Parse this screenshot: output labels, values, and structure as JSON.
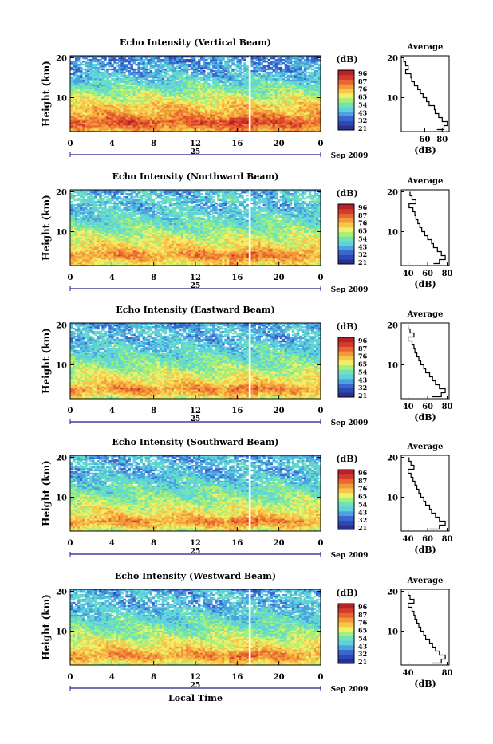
{
  "figure": {
    "xlabel": "Local Time",
    "date_label": "Sep 2009",
    "day_label": "25",
    "ylabel": "Height (km)"
  },
  "colorbar": {
    "unit": "(dB)",
    "ticks": [
      "96",
      "87",
      "76",
      "65",
      "54",
      "43",
      "32",
      "21"
    ],
    "colors": [
      "#2b2f8f",
      "#2c4ab5",
      "#3a66d0",
      "#4aa3dd",
      "#5ed0de",
      "#6fe3b5",
      "#a8ef7a",
      "#f0ef6a",
      "#f7c74a",
      "#f29a3b",
      "#ea6631",
      "#d43b2b",
      "#b52228"
    ]
  },
  "chart_data": [
    {
      "type": "heatmap",
      "title": "Echo Intensity (Vertical Beam)",
      "xlabel": "Local Time",
      "ylabel": "Height (km)",
      "x_ticks": [
        "0",
        "4",
        "8",
        "12",
        "16",
        "20",
        "0"
      ],
      "y_ticks": [
        "20",
        "10"
      ],
      "xlim": [
        0,
        24
      ],
      "ylim": [
        1.5,
        20.5
      ],
      "z_unit": "dB",
      "z_range": [
        21,
        96
      ],
      "colorbar_ticks": [
        96,
        87,
        76,
        65,
        54,
        43,
        32,
        21
      ],
      "profile": {
        "title": "Average",
        "xlabel": "(dB)",
        "x_ticks": [
          "60",
          "80"
        ],
        "y_ticks": [
          "20",
          "10"
        ],
        "xlim": [
          33,
          88
        ],
        "ylim": [
          1.5,
          20.5
        ],
        "height": [
          2,
          3,
          4,
          5,
          6,
          7,
          8,
          9,
          10,
          11,
          12,
          13,
          14,
          15,
          16,
          17,
          18,
          19,
          20
        ],
        "mean_db": [
          74,
          82,
          86,
          80,
          76,
          72,
          71,
          65,
          62,
          58,
          55,
          52,
          48,
          45,
          44,
          38,
          41,
          38,
          36
        ]
      }
    },
    {
      "type": "heatmap",
      "title": "Echo Intensity (Northward Beam)",
      "xlabel": "Local Time",
      "ylabel": "Height (km)",
      "x_ticks": [
        "0",
        "4",
        "8",
        "12",
        "16",
        "20",
        "0"
      ],
      "y_ticks": [
        "20",
        "10"
      ],
      "xlim": [
        0,
        24
      ],
      "ylim": [
        1.5,
        20.5
      ],
      "z_unit": "dB",
      "z_range": [
        21,
        96
      ],
      "colorbar_ticks": [
        96,
        87,
        76,
        65,
        54,
        43,
        32,
        21
      ],
      "profile": {
        "title": "Average",
        "xlabel": "(dB)",
        "x_ticks": [
          "40",
          "60",
          "80"
        ],
        "y_ticks": [
          "20",
          "10"
        ],
        "xlim": [
          33,
          82
        ],
        "ylim": [
          1.5,
          20.5
        ],
        "height": [
          2,
          3,
          4,
          5,
          6,
          7,
          8,
          9,
          10,
          11,
          12,
          13,
          14,
          15,
          16,
          17,
          18,
          19,
          20
        ],
        "mean_db": [
          66,
          72,
          78,
          74,
          70,
          66,
          64,
          60,
          57,
          54,
          52,
          50,
          48,
          47,
          45,
          41,
          48,
          44,
          42
        ]
      }
    },
    {
      "type": "heatmap",
      "title": "Echo Intensity (Eastward Beam)",
      "xlabel": "Local Time",
      "ylabel": "Height (km)",
      "x_ticks": [
        "0",
        "4",
        "8",
        "12",
        "16",
        "20",
        "0"
      ],
      "y_ticks": [
        "20",
        "10"
      ],
      "xlim": [
        0,
        24
      ],
      "ylim": [
        1.5,
        20.5
      ],
      "z_unit": "dB",
      "z_range": [
        21,
        96
      ],
      "colorbar_ticks": [
        96,
        87,
        76,
        65,
        54,
        43,
        32,
        21
      ],
      "profile": {
        "title": "Average",
        "xlabel": "(dB)",
        "x_ticks": [
          "40",
          "60",
          "80"
        ],
        "y_ticks": [
          "20",
          "10"
        ],
        "xlim": [
          33,
          82
        ],
        "ylim": [
          1.5,
          20.5
        ],
        "height": [
          2,
          3,
          4,
          5,
          6,
          7,
          8,
          9,
          10,
          11,
          12,
          13,
          14,
          15,
          16,
          17,
          18,
          19,
          20
        ],
        "mean_db": [
          64,
          74,
          78,
          72,
          68,
          65,
          62,
          58,
          56,
          53,
          51,
          49,
          47,
          46,
          44,
          40,
          46,
          42,
          40
        ]
      }
    },
    {
      "type": "heatmap",
      "title": "Echo Intensity (Southward Beam)",
      "xlabel": "Local Time",
      "ylabel": "Height (km)",
      "x_ticks": [
        "0",
        "4",
        "8",
        "12",
        "16",
        "20",
        "0"
      ],
      "y_ticks": [
        "20",
        "10"
      ],
      "xlim": [
        0,
        24
      ],
      "ylim": [
        1.5,
        20.5
      ],
      "z_unit": "dB",
      "z_range": [
        21,
        96
      ],
      "colorbar_ticks": [
        96,
        87,
        76,
        65,
        54,
        43,
        32,
        21
      ],
      "profile": {
        "title": "Average",
        "xlabel": "(dB)",
        "x_ticks": [
          "40",
          "60",
          "80"
        ],
        "y_ticks": [
          "20",
          "10"
        ],
        "xlim": [
          33,
          82
        ],
        "ylim": [
          1.5,
          20.5
        ],
        "height": [
          2,
          3,
          4,
          5,
          6,
          7,
          8,
          9,
          10,
          11,
          12,
          13,
          14,
          15,
          16,
          17,
          18,
          19,
          20
        ],
        "mean_db": [
          62,
          72,
          78,
          72,
          68,
          64,
          62,
          58,
          56,
          53,
          51,
          49,
          47,
          45,
          43,
          40,
          46,
          43,
          41
        ]
      }
    },
    {
      "type": "heatmap",
      "title": "Echo Intensity (Westward Beam)",
      "xlabel": "Local Time",
      "ylabel": "Height (km)",
      "x_ticks": [
        "0",
        "4",
        "8",
        "12",
        "16",
        "20",
        "0"
      ],
      "y_ticks": [
        "20",
        "10"
      ],
      "xlim": [
        0,
        24
      ],
      "ylim": [
        1.5,
        20.5
      ],
      "z_unit": "dB",
      "z_range": [
        21,
        96
      ],
      "colorbar_ticks": [
        96,
        87,
        76,
        65,
        54,
        43,
        32,
        21
      ],
      "profile": {
        "title": "Average",
        "xlabel": "(dB)",
        "x_ticks": [
          "40",
          "80"
        ],
        "y_ticks": [
          "20",
          "10"
        ],
        "xlim": [
          33,
          82
        ],
        "ylim": [
          1.5,
          20.5
        ],
        "height": [
          2,
          3,
          4,
          5,
          6,
          7,
          8,
          9,
          10,
          11,
          12,
          13,
          14,
          15,
          16,
          17,
          18,
          19,
          20
        ],
        "mean_db": [
          64,
          74,
          78,
          72,
          68,
          65,
          62,
          58,
          56,
          53,
          51,
          49,
          47,
          46,
          44,
          40,
          46,
          42,
          40
        ]
      }
    }
  ]
}
